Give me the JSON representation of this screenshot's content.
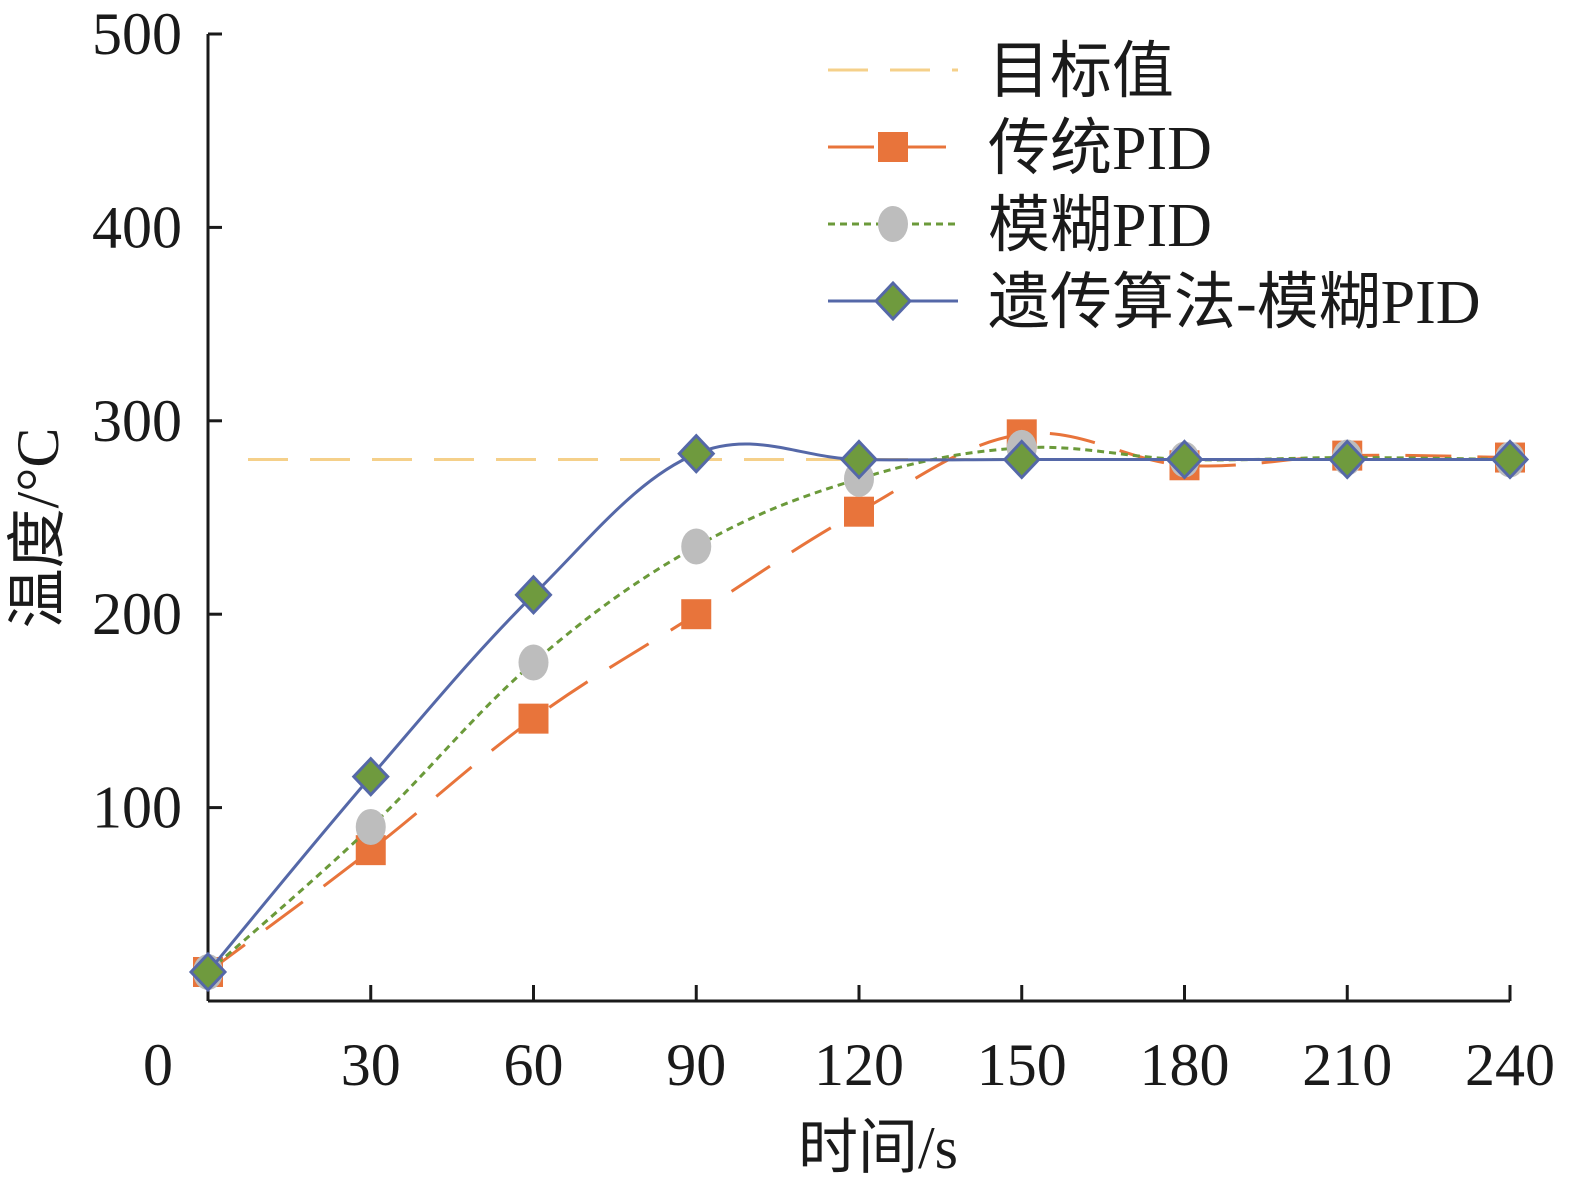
{
  "chart_data": {
    "type": "line",
    "title": "",
    "xlabel": "时间/s",
    "ylabel": "温度/°C",
    "xlim": [
      0,
      240
    ],
    "ylim": [
      0,
      500
    ],
    "x_ticks": [
      0,
      30,
      60,
      90,
      120,
      150,
      180,
      210,
      240
    ],
    "y_ticks": [
      100,
      200,
      300,
      400,
      500
    ],
    "grid": false,
    "legend": "top-right",
    "target": {
      "name": "目标值",
      "value": 280,
      "color": "#f5d08a"
    },
    "x": [
      0,
      30,
      60,
      90,
      120,
      150,
      180,
      210,
      240
    ],
    "series": [
      {
        "name": "传统PID",
        "color": "#e8743b",
        "marker": "square",
        "line": "long-dash",
        "values": [
          15,
          78,
          146,
          200,
          253,
          293,
          277,
          282,
          281
        ]
      },
      {
        "name": "模糊PID",
        "color": "#6b9a3a",
        "marker_color": "#bdbdbd",
        "marker": "circle",
        "line": "dotted",
        "values": [
          15,
          90,
          175,
          235,
          270,
          286,
          280,
          281,
          280
        ]
      },
      {
        "name": "遗传算法-模糊PID",
        "color": "#5568a8",
        "marker_color": "#6f9a3e",
        "marker": "diamond",
        "line": "solid",
        "values": [
          15,
          116,
          210,
          283,
          280,
          280,
          280,
          280,
          280
        ]
      }
    ]
  }
}
